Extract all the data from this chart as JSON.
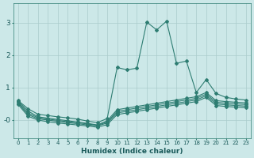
{
  "xlabel": "Humidex (Indice chaleur)",
  "background_color": "#cce8e8",
  "line_color": "#2e7d72",
  "grid_color": "#aacccc",
  "xlim": [
    -0.5,
    23.5
  ],
  "ylim": [
    -0.55,
    3.6
  ],
  "yticks": [
    0,
    1,
    2,
    3
  ],
  "ytick_labels": [
    "-0",
    "1",
    "2",
    "3"
  ],
  "xticks": [
    0,
    1,
    2,
    3,
    4,
    5,
    6,
    7,
    8,
    9,
    10,
    11,
    12,
    13,
    14,
    15,
    16,
    17,
    18,
    19,
    20,
    21,
    22,
    23
  ],
  "series": [
    {
      "x": [
        0,
        1,
        2,
        3,
        4,
        5,
        6,
        7,
        8,
        9,
        10,
        11,
        12,
        13,
        14,
        15,
        16,
        17,
        18,
        19,
        20,
        21,
        22,
        23
      ],
      "y": [
        0.6,
        0.35,
        0.18,
        0.14,
        0.1,
        0.07,
        0.03,
        -0.03,
        -0.08,
        0.05,
        1.62,
        1.55,
        1.6,
        3.02,
        2.78,
        3.05,
        1.75,
        1.82,
        0.85,
        1.25,
        0.82,
        0.7,
        0.65,
        0.62
      ]
    },
    {
      "x": [
        0,
        1,
        2,
        3,
        4,
        5,
        6,
        7,
        8,
        9,
        10,
        11,
        12,
        13,
        14,
        15,
        16,
        17,
        18,
        19,
        20,
        21,
        22,
        23
      ],
      "y": [
        0.58,
        0.28,
        0.1,
        0.06,
        0.02,
        -0.02,
        -0.06,
        -0.1,
        -0.15,
        -0.02,
        0.32,
        0.37,
        0.42,
        0.47,
        0.52,
        0.57,
        0.62,
        0.67,
        0.72,
        0.85,
        0.6,
        0.57,
        0.55,
        0.53
      ]
    },
    {
      "x": [
        0,
        1,
        2,
        3,
        4,
        5,
        6,
        7,
        8,
        9,
        10,
        11,
        12,
        13,
        14,
        15,
        16,
        17,
        18,
        19,
        20,
        21,
        22,
        23
      ],
      "y": [
        0.55,
        0.22,
        0.07,
        0.03,
        -0.01,
        -0.05,
        -0.08,
        -0.12,
        -0.16,
        -0.06,
        0.27,
        0.32,
        0.37,
        0.42,
        0.47,
        0.52,
        0.57,
        0.62,
        0.67,
        0.8,
        0.55,
        0.52,
        0.5,
        0.48
      ]
    },
    {
      "x": [
        0,
        1,
        2,
        3,
        4,
        5,
        6,
        7,
        8,
        9,
        10,
        11,
        12,
        13,
        14,
        15,
        16,
        17,
        18,
        19,
        20,
        21,
        22,
        23
      ],
      "y": [
        0.52,
        0.17,
        0.04,
        -0.0,
        -0.04,
        -0.08,
        -0.11,
        -0.15,
        -0.18,
        -0.09,
        0.22,
        0.27,
        0.32,
        0.37,
        0.42,
        0.47,
        0.52,
        0.57,
        0.62,
        0.75,
        0.5,
        0.47,
        0.45,
        0.43
      ]
    },
    {
      "x": [
        0,
        1,
        2,
        3,
        4,
        5,
        6,
        7,
        8,
        9,
        10,
        11,
        12,
        13,
        14,
        15,
        16,
        17,
        18,
        19,
        20,
        21,
        22,
        23
      ],
      "y": [
        0.48,
        0.12,
        -0.0,
        -0.05,
        -0.09,
        -0.12,
        -0.15,
        -0.18,
        -0.22,
        -0.14,
        0.17,
        0.22,
        0.27,
        0.32,
        0.37,
        0.42,
        0.47,
        0.52,
        0.57,
        0.7,
        0.45,
        0.42,
        0.4,
        0.38
      ]
    }
  ]
}
